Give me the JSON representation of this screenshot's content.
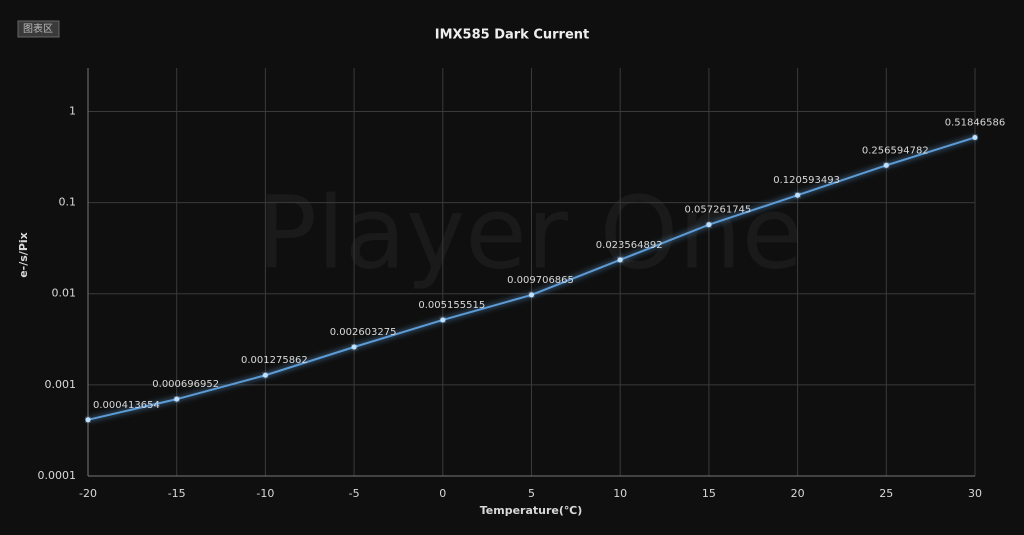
{
  "chart_data": {
    "type": "line",
    "title": "IMX585 Dark Current",
    "badge": "图表区",
    "watermark": "Player One",
    "xlabel": "Temperature(℃)",
    "ylabel": "e-/s/Pix",
    "x": [
      -20,
      -15,
      -10,
      -5,
      0,
      5,
      10,
      15,
      20,
      25,
      30
    ],
    "series": [
      {
        "name": "IMX585",
        "color": "#5b9bd5",
        "values": [
          0.000413654,
          0.000696952,
          0.001275862,
          0.002603275,
          0.005155515,
          0.009706865,
          0.023564892,
          0.057261745,
          0.120593493,
          0.256594782,
          0.51846586
        ]
      }
    ],
    "xlim": [
      -20,
      30
    ],
    "xticks": [
      -20,
      -15,
      -10,
      -5,
      0,
      5,
      10,
      15,
      20,
      25,
      30
    ],
    "ylim": [
      0.0001,
      3
    ],
    "yticks": [
      0.0001,
      0.001,
      0.01,
      0.1,
      1
    ],
    "ylog": true,
    "grid": true
  }
}
